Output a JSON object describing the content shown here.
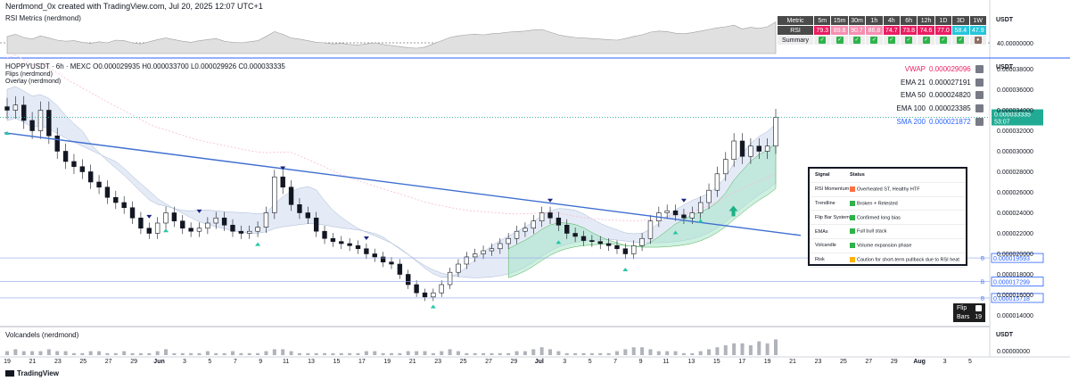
{
  "header": {
    "credit": "Nerdmond_0x created with TradingView.com, Jul 20, 2025 12:07 UTC+1"
  },
  "rsi_panel": {
    "title": "RSI Metrics (nerdmond)",
    "axis_unit": "USDT",
    "level_label": "40.00000000"
  },
  "mtf_table": {
    "headers": [
      "Metric",
      "5m",
      "15m",
      "30m",
      "1h",
      "4h",
      "6h",
      "12h",
      "1D",
      "3D",
      "1W"
    ],
    "rsi_label": "RSI",
    "rsi_values": [
      "79.3",
      "89.8",
      "90.7",
      "86.8",
      "74.7",
      "73.8",
      "74.6",
      "77.0",
      "58.4",
      "47.9"
    ],
    "rsi_colors": [
      "#e91e63",
      "#f48fb1",
      "#f48fb1",
      "#f48fb1",
      "#e91e63",
      "#e91e63",
      "#e91e63",
      "#e91e63",
      "#26c6da",
      "#26c6da"
    ],
    "summary_label": "Summary",
    "summary_icons": [
      "check",
      "check",
      "check",
      "check",
      "check",
      "check",
      "check",
      "check",
      "check",
      "trophy"
    ]
  },
  "main_panel": {
    "symbol_line": "HOPPYUSDT · 6h · MEXC  O0.000029935  H0.000033700  L0.000029926  C0.000033335",
    "sub_line_1": "Flips (nerdmond)",
    "sub_line_2": "Overlay (nerdmond)",
    "axis_unit": "USDT"
  },
  "ma_legend": [
    {
      "name": "VWAP",
      "value": "0.000029096",
      "color": "#e91e63"
    },
    {
      "name": "EMA 21",
      "value": "0.000027191",
      "color": "#131722"
    },
    {
      "name": "EMA 50",
      "value": "0.000024820",
      "color": "#131722"
    },
    {
      "name": "EMA 100",
      "value": "0.000023385",
      "color": "#131722"
    },
    {
      "name": "SMA 200",
      "value": "0.000021872",
      "color": "#2962ff"
    }
  ],
  "price_badge": {
    "value": "0.000033335",
    "countdown": "53:07",
    "color": "#22ab94"
  },
  "hline_labels": [
    {
      "value": "0.000019593",
      "color": "#2962ff"
    },
    {
      "value": "0.000017299",
      "color": "#2962ff"
    },
    {
      "value": "0.000015718",
      "color": "#2962ff"
    }
  ],
  "signal_table": {
    "headers": {
      "signal": "Signal",
      "status": "Status"
    },
    "rows": [
      {
        "signal": "RSI Momentum",
        "status": "Overheated ST, Healthy HTF",
        "icon": "fire"
      },
      {
        "signal": "Trendline",
        "status": "Broken + Retested",
        "icon": "check"
      },
      {
        "signal": "Flip Bar System",
        "status": "Confirmed long bias",
        "icon": "check"
      },
      {
        "signal": "EMAs",
        "status": "Full bull stack",
        "icon": "check"
      },
      {
        "signal": "Volcandle",
        "status": "Volume expansion phase",
        "icon": "check"
      },
      {
        "signal": "Risk",
        "status": "Caution for short-term pullback due to RSI heat",
        "icon": "warning"
      }
    ]
  },
  "flip_box": {
    "label_flip": "Flip",
    "label_bars": "Bars",
    "bars_value": "19"
  },
  "volume_panel": {
    "title": "Volcandels (nerdmond)",
    "axis_unit": "USDT",
    "zero_label": "0.00000000"
  },
  "footer": {
    "brand": "TradingView"
  },
  "chart_data": {
    "type": "candlestick",
    "y_axis": {
      "ticks": [
        "0.000038000",
        "0.000036000",
        "0.000034000",
        "0.000032000",
        "0.000030000",
        "0.000028000",
        "0.000026000",
        "0.000024000",
        "0.000022000",
        "0.000020000",
        "0.000018000",
        "0.000016000",
        "0.000014000"
      ],
      "range": [
        1.3e-05,
        3.9e-05
      ]
    },
    "x_axis": {
      "ticks": [
        "19",
        "21",
        "23",
        "25",
        "27",
        "29",
        "Jun",
        "3",
        "5",
        "7",
        "9",
        "11",
        "13",
        "15",
        "17",
        "19",
        "21",
        "23",
        "25",
        "27",
        "29",
        "Jul",
        "3",
        "5",
        "7",
        "9",
        "11",
        "13",
        "15",
        "17",
        "19",
        "21",
        "23",
        "25",
        "27",
        "29",
        "Aug",
        "3",
        "5"
      ],
      "bold": [
        "Jun",
        "Jul",
        "Aug"
      ]
    },
    "close_path": [
      3.4e-05,
      3.45e-05,
      3.3e-05,
      3.2e-05,
      3.4e-05,
      3.15e-05,
      3e-05,
      2.9e-05,
      2.85e-05,
      2.8e-05,
      2.7e-05,
      2.65e-05,
      2.55e-05,
      2.5e-05,
      2.45e-05,
      2.35e-05,
      2.25e-05,
      2.2e-05,
      2.3e-05,
      2.4e-05,
      2.32e-05,
      2.25e-05,
      2.22e-05,
      2.25e-05,
      2.3e-05,
      2.35e-05,
      2.28e-05,
      2.22e-05,
      2.2e-05,
      2.22e-05,
      2.26e-05,
      2.4e-05,
      2.75e-05,
      2.65e-05,
      2.48e-05,
      2.4e-05,
      2.35e-05,
      2.22e-05,
      2.15e-05,
      2.12e-05,
      2.1e-05,
      2.08e-05,
      2.05e-05,
      2e-05,
      1.97e-05,
      1.92e-05,
      1.9e-05,
      1.8e-05,
      1.7e-05,
      1.62e-05,
      1.58e-05,
      1.62e-05,
      1.7e-05,
      1.82e-05,
      1.9e-05,
      1.97e-05,
      2e-05,
      2.03e-05,
      2.05e-05,
      2.1e-05,
      2.15e-05,
      2.22e-05,
      2.25e-05,
      2.32e-05,
      2.4e-05,
      2.35e-05,
      2.28e-05,
      2.2e-05,
      2.17e-05,
      2.13e-05,
      2.12e-05,
      2.1e-05,
      2.08e-05,
      2.05e-05,
      2e-05,
      2.08e-05,
      2.15e-05,
      2.32e-05,
      2.4e-05,
      2.42e-05,
      2.38e-05,
      2.35e-05,
      2.4e-05,
      2.5e-05,
      2.62e-05,
      2.78e-05,
      2.92e-05,
      3.1e-05,
      2.95e-05,
      3.05e-05,
      3e-05,
      3.05e-05,
      3.33e-05
    ],
    "volume": [
      2,
      3,
      2,
      2,
      2,
      3,
      2,
      2,
      1,
      1,
      2,
      2,
      1,
      1,
      2,
      1,
      1,
      1,
      2,
      3,
      1,
      1,
      1,
      1,
      2,
      1,
      1,
      2,
      1,
      1,
      1,
      2,
      3,
      3,
      2,
      1,
      1,
      1,
      1,
      1,
      1,
      1,
      1,
      2,
      2,
      1,
      1,
      1,
      2,
      2,
      2,
      1,
      2,
      3,
      2,
      1,
      1,
      1,
      1,
      1,
      1,
      2,
      2,
      3,
      4,
      3,
      2,
      1,
      1,
      1,
      1,
      1,
      1,
      2,
      3,
      4,
      4,
      3,
      2,
      2,
      2,
      1,
      1,
      2,
      3,
      4,
      5,
      6,
      6,
      5,
      7,
      6,
      8
    ],
    "rsi": [
      52,
      56,
      50,
      47,
      53,
      49,
      45,
      43,
      44,
      41,
      39,
      42,
      40,
      45,
      44,
      40,
      38,
      42,
      46,
      49,
      46,
      43,
      41,
      44,
      46,
      48,
      43,
      41,
      40,
      42,
      44,
      52,
      61,
      56,
      49,
      47,
      44,
      41,
      40,
      38,
      39,
      37,
      36,
      38,
      40,
      37,
      35,
      33,
      31,
      30,
      32,
      38,
      44,
      50,
      53,
      55,
      56,
      55,
      57,
      58,
      60,
      61,
      62,
      64,
      65,
      60,
      55,
      52,
      50,
      49,
      48,
      47,
      46,
      45,
      48,
      52,
      55,
      60,
      62,
      61,
      58,
      57,
      59,
      62,
      65,
      68,
      70,
      73,
      66,
      69,
      67,
      70,
      79
    ],
    "rsi_level": 40,
    "markers": [
      {
        "type": "up",
        "index": 0
      },
      {
        "type": "up",
        "index": 19
      },
      {
        "type": "up",
        "index": 30
      },
      {
        "type": "up",
        "index": 51
      },
      {
        "type": "up",
        "index": 66
      },
      {
        "type": "up",
        "index": 74
      },
      {
        "type": "up",
        "index": 80
      },
      {
        "type": "up",
        "index": 83
      },
      {
        "type": "down",
        "index": 17
      },
      {
        "type": "down",
        "index": 23
      },
      {
        "type": "down",
        "index": 33
      },
      {
        "type": "down",
        "index": 43
      },
      {
        "type": "down",
        "index": 65
      },
      {
        "type": "down",
        "index": 81
      }
    ]
  }
}
